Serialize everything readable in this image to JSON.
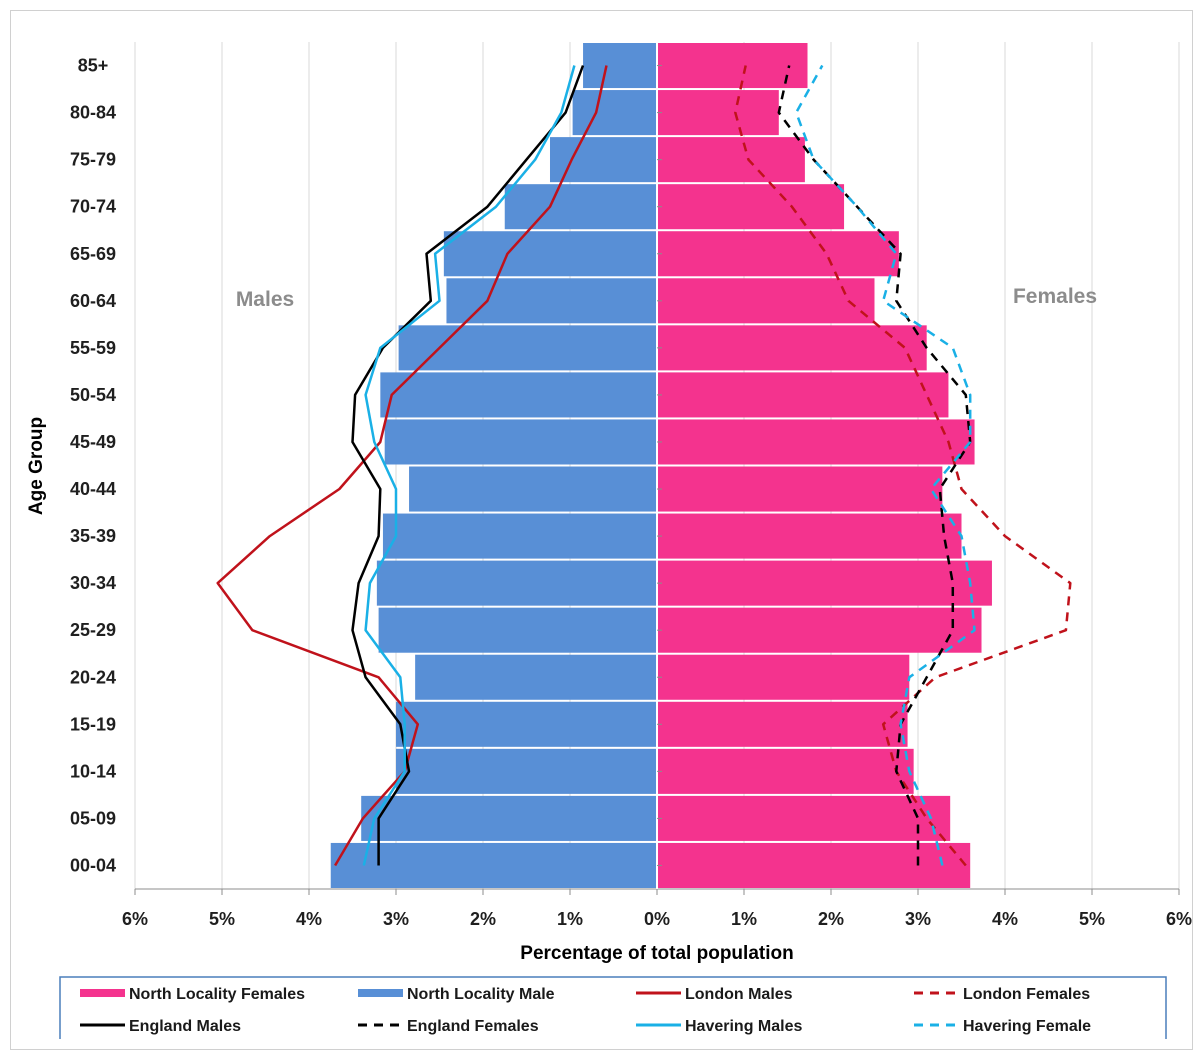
{
  "chart_data": {
    "type": "bar",
    "subtype": "population-pyramid",
    "title": "",
    "xlabel": "Percentage of total population",
    "ylabel": "Age Group",
    "xlim": [
      -6,
      6
    ],
    "x_ticks": [
      "6%",
      "5%",
      "4%",
      "3%",
      "2%",
      "1%",
      "0%",
      "1%",
      "2%",
      "3%",
      "4%",
      "5%",
      "6%"
    ],
    "grid": "vertical gridlines",
    "legend_position": "bottom",
    "side_labels": {
      "left": "Males",
      "right": "Females"
    },
    "categories": [
      "00-04",
      "05-09",
      "10-14",
      "15-19",
      "20-24",
      "25-29",
      "30-34",
      "35-39",
      "40-44",
      "45-49",
      "50-54",
      "55-59",
      "60-64",
      "65-69",
      "70-74",
      "75-79",
      "80-84",
      "85+"
    ],
    "bar_series": [
      {
        "name": "North Locality Females",
        "side": "right",
        "color": "#f4338e",
        "values": [
          3.6,
          3.37,
          2.95,
          2.88,
          2.9,
          3.73,
          3.85,
          3.5,
          3.28,
          3.65,
          3.35,
          3.1,
          2.5,
          2.78,
          2.15,
          1.7,
          1.4,
          1.73
        ]
      },
      {
        "name": "North Locality Male",
        "side": "left",
        "color": "#588fd6",
        "values": [
          3.75,
          3.4,
          3.0,
          3.0,
          2.78,
          3.2,
          3.22,
          3.15,
          2.85,
          3.13,
          3.18,
          2.97,
          2.42,
          2.45,
          1.75,
          1.23,
          0.97,
          0.85
        ]
      }
    ],
    "line_series": [
      {
        "name": "London Males",
        "side": "left",
        "color": "#c0121b",
        "dash": "solid",
        "values": [
          3.7,
          3.38,
          2.9,
          2.75,
          3.2,
          4.65,
          5.05,
          4.45,
          3.65,
          3.18,
          3.05,
          2.5,
          1.95,
          1.72,
          1.23,
          0.98,
          0.7,
          0.58
        ]
      },
      {
        "name": "London Females",
        "side": "right",
        "color": "#c0121b",
        "dash": "dashed",
        "values": [
          3.55,
          3.1,
          2.75,
          2.6,
          3.2,
          4.7,
          4.75,
          4.0,
          3.5,
          3.35,
          3.1,
          2.85,
          2.2,
          1.95,
          1.55,
          1.05,
          0.9,
          1.02
        ]
      },
      {
        "name": "England Males",
        "side": "left",
        "color": "#000000",
        "dash": "solid",
        "values": [
          3.2,
          3.2,
          2.85,
          2.95,
          3.35,
          3.5,
          3.43,
          3.2,
          3.18,
          3.5,
          3.47,
          3.15,
          2.6,
          2.65,
          1.95,
          1.5,
          1.05,
          0.85
        ]
      },
      {
        "name": "England Females",
        "side": "right",
        "color": "#000000",
        "dash": "dashed",
        "values": [
          3.0,
          3.0,
          2.75,
          2.8,
          3.1,
          3.4,
          3.4,
          3.3,
          3.25,
          3.6,
          3.55,
          3.1,
          2.75,
          2.8,
          2.3,
          1.8,
          1.4,
          1.52
        ]
      },
      {
        "name": "Havering Males",
        "side": "left",
        "color": "#1ab0e6",
        "dash": "solid",
        "values": [
          3.37,
          3.25,
          2.9,
          2.9,
          2.95,
          3.35,
          3.3,
          3.0,
          3.0,
          3.25,
          3.35,
          3.18,
          2.5,
          2.55,
          1.85,
          1.4,
          1.1,
          0.95
        ]
      },
      {
        "name": "Havering Female",
        "side": "right",
        "color": "#1ab0e6",
        "dash": "dashed",
        "values": [
          3.28,
          3.15,
          2.9,
          2.8,
          2.9,
          3.65,
          3.6,
          3.5,
          3.15,
          3.6,
          3.6,
          3.4,
          2.6,
          2.75,
          2.3,
          1.8,
          1.6,
          1.9
        ]
      }
    ],
    "legend": [
      "North Locality Females",
      "North Locality Male",
      "London Males",
      "London Females",
      "England Males",
      "England Females",
      "Havering Males",
      "Havering Female"
    ]
  }
}
